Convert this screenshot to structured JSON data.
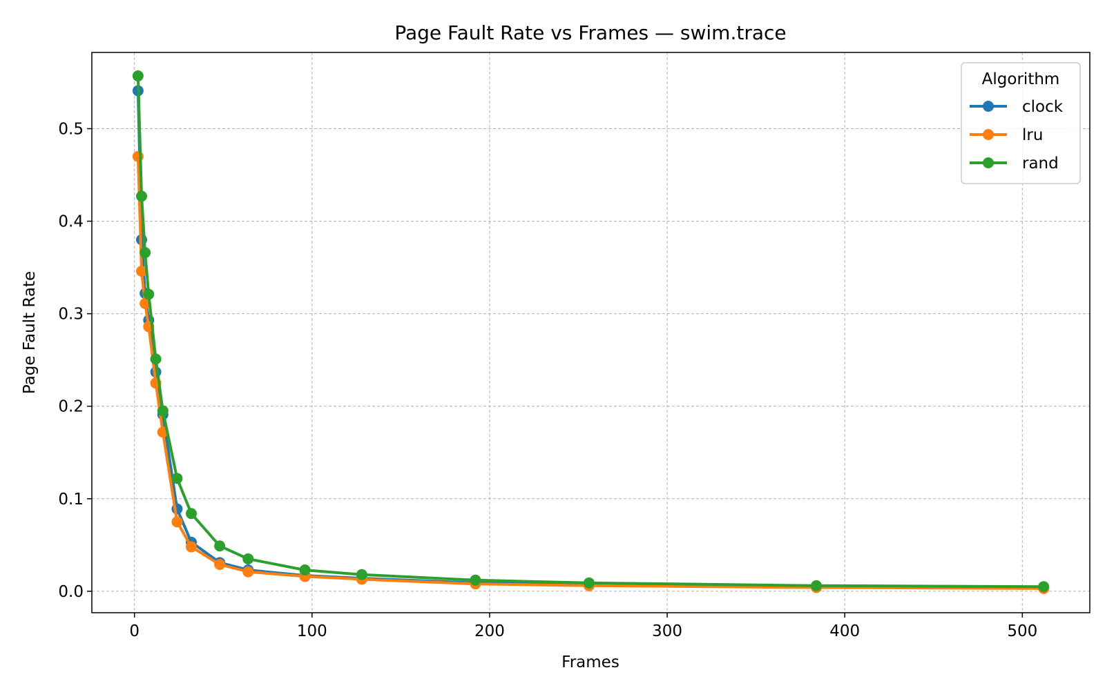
{
  "chart_data": {
    "type": "line",
    "title": "Page Fault Rate vs Frames — swim.trace",
    "xlabel": "Frames",
    "ylabel": "Page Fault Rate",
    "xlim": [
      -24,
      538
    ],
    "ylim": [
      -0.0232,
      0.5824
    ],
    "xticks": [
      0,
      100,
      200,
      300,
      400,
      500
    ],
    "yticks": [
      0.0,
      0.1,
      0.2,
      0.3,
      0.4,
      0.5
    ],
    "xtick_labels": [
      "0",
      "100",
      "200",
      "300",
      "400",
      "500"
    ],
    "ytick_labels": [
      "0.0",
      "0.1",
      "0.2",
      "0.3",
      "0.4",
      "0.5"
    ],
    "grid": true,
    "legend": {
      "title": "Algorithm",
      "position": "top-right"
    },
    "x": [
      2,
      4,
      6,
      8,
      12,
      16,
      24,
      32,
      48,
      64,
      96,
      128,
      192,
      256,
      384,
      512
    ],
    "series": [
      {
        "name": "clock",
        "color": "#1f77b4",
        "values": [
          0.541,
          0.38,
          0.322,
          0.293,
          0.237,
          0.191,
          0.089,
          0.053,
          0.031,
          0.023,
          0.017,
          0.014,
          0.009,
          0.007,
          0.005,
          0.004
        ]
      },
      {
        "name": "lru",
        "color": "#ff7f0e",
        "values": [
          0.47,
          0.346,
          0.311,
          0.286,
          0.225,
          0.172,
          0.075,
          0.048,
          0.029,
          0.021,
          0.016,
          0.013,
          0.008,
          0.006,
          0.004,
          0.003
        ]
      },
      {
        "name": "rand",
        "color": "#2ca02c",
        "values": [
          0.557,
          0.427,
          0.366,
          0.321,
          0.251,
          0.195,
          0.122,
          0.084,
          0.049,
          0.035,
          0.023,
          0.018,
          0.012,
          0.009,
          0.006,
          0.005
        ]
      }
    ]
  }
}
